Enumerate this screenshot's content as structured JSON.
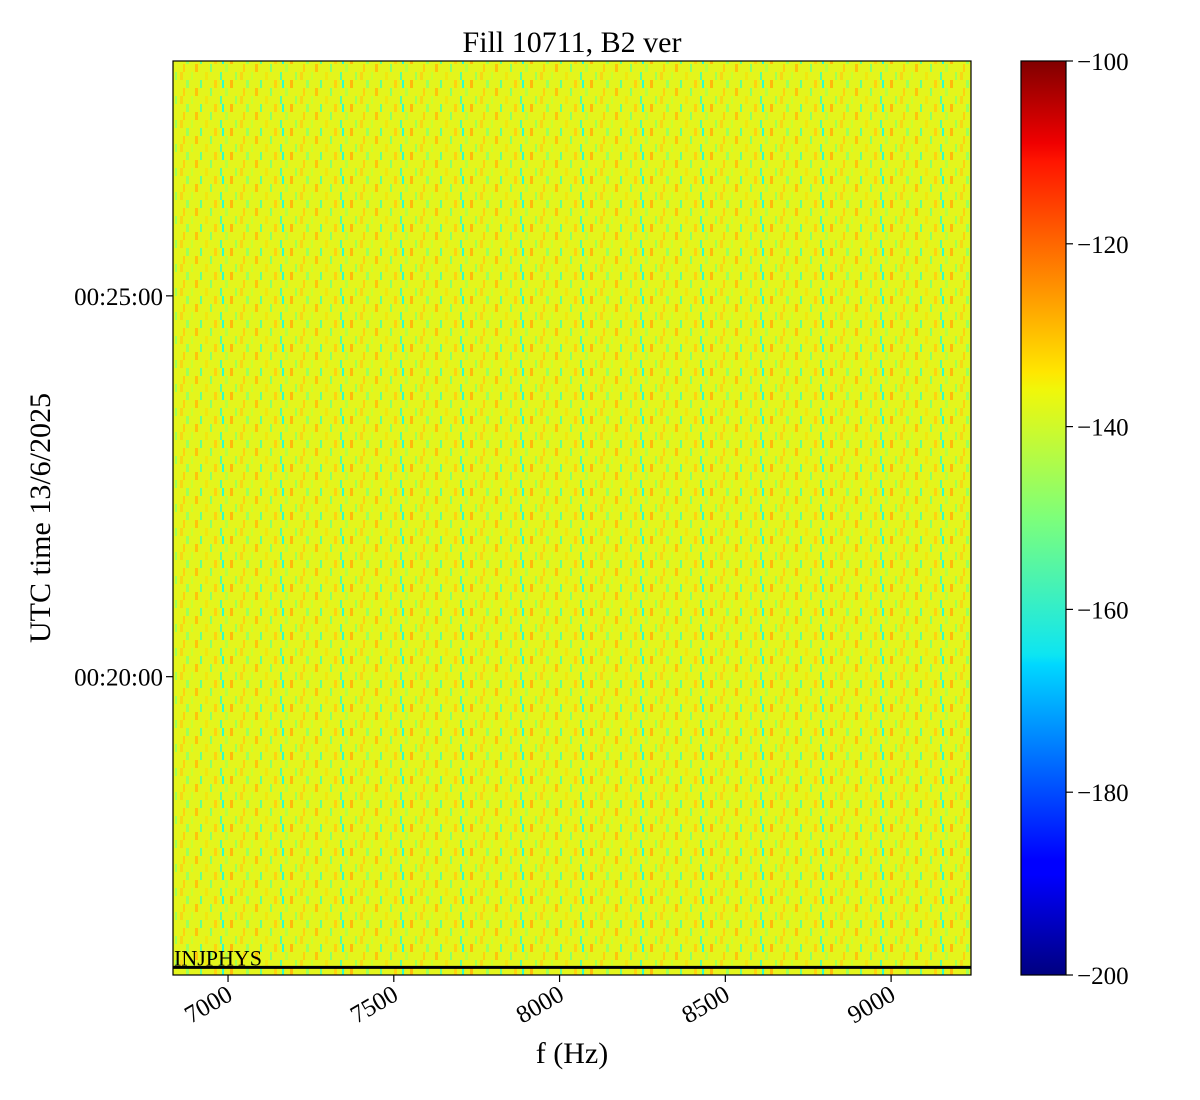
{
  "chart_data": {
    "type": "heatmap",
    "title": "Fill 10711, B2 ver",
    "x_label": "f (Hz)",
    "y_label": "UTC time 13/6/2025",
    "xlim": [
      6834,
      9241
    ],
    "xticks": [
      7000,
      7500,
      8000,
      8500,
      9000
    ],
    "ylim": [
      965,
      1685
    ],
    "yticks": [
      {
        "value": 1200,
        "label": "00:20:00"
      },
      {
        "value": 1500,
        "label": "00:25:00"
      }
    ],
    "colormap": "jet",
    "colorbar_lim": [
      -200,
      -100
    ],
    "colorbar_ticks": [
      {
        "value": -100,
        "label": "−100"
      },
      {
        "value": -120,
        "label": "−120"
      },
      {
        "value": -140,
        "label": "−140"
      },
      {
        "value": -160,
        "label": "−160"
      },
      {
        "value": -180,
        "label": "−180"
      },
      {
        "value": -200,
        "label": "−200"
      }
    ],
    "annotation": {
      "text": "INJPHYS",
      "y": 971
    }
  }
}
